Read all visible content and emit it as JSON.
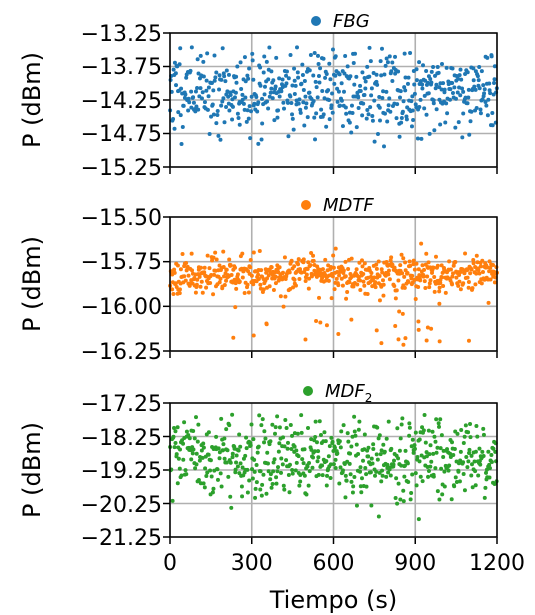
{
  "chart_data": [
    {
      "type": "scatter",
      "legend": "FBG",
      "legend_sub": "",
      "color": "#1f77b4",
      "ylabel": "P (dBm)",
      "xlim": [
        0,
        1200
      ],
      "ylim": [
        -15.25,
        -13.25
      ],
      "yticks": [
        "−13.25",
        "−13.75",
        "−14.25",
        "−14.75",
        "−15.25"
      ],
      "ytick_values": [
        -13.25,
        -13.75,
        -14.25,
        -14.75,
        -15.25
      ],
      "xticks": [
        0,
        300,
        600,
        900,
        1200
      ],
      "grid": true,
      "legend_position": "top-center",
      "points": {
        "n": 600,
        "mean": -14.1,
        "sd": 0.32,
        "min": -15.05,
        "max": -13.45,
        "seed": 11
      }
    },
    {
      "type": "scatter",
      "legend": "MDTF",
      "legend_sub": "",
      "color": "#ff7f0e",
      "ylabel": "P (dBm)",
      "xlim": [
        0,
        1200
      ],
      "ylim": [
        -16.25,
        -15.5
      ],
      "yticks": [
        "−15.50",
        "−15.75",
        "−16.00",
        "−16.25"
      ],
      "ytick_values": [
        -15.5,
        -15.75,
        -16.0,
        -16.25
      ],
      "xticks": [
        0,
        300,
        600,
        900,
        1200
      ],
      "grid": true,
      "legend_position": "top-center",
      "points": {
        "n": 600,
        "mean": -15.82,
        "sd": 0.05,
        "min": -16.23,
        "max": -15.62,
        "seed": 23,
        "outliers": 30,
        "outlier_min": -16.22,
        "outlier_max": -15.95
      }
    },
    {
      "type": "scatter",
      "legend": "MDF",
      "legend_sub": "2",
      "color": "#2ca02c",
      "ylabel": "P (dBm)",
      "xlabel": "Tiempo (s)",
      "xlim": [
        0,
        1200
      ],
      "ylim": [
        -21.25,
        -17.25
      ],
      "yticks": [
        "−17.25",
        "−18.25",
        "−19.25",
        "−20.25",
        "−21.25"
      ],
      "ytick_values": [
        -17.25,
        -18.25,
        -19.25,
        -20.25,
        -21.25
      ],
      "xticks": [
        "0",
        "300",
        "600",
        "900",
        "1200"
      ],
      "xtick_values": [
        0,
        300,
        600,
        900,
        1200
      ],
      "grid": true,
      "legend_position": "top-center",
      "points": {
        "n": 600,
        "mean": -18.9,
        "sd": 0.62,
        "min": -20.9,
        "max": -17.6,
        "seed": 37
      }
    }
  ]
}
